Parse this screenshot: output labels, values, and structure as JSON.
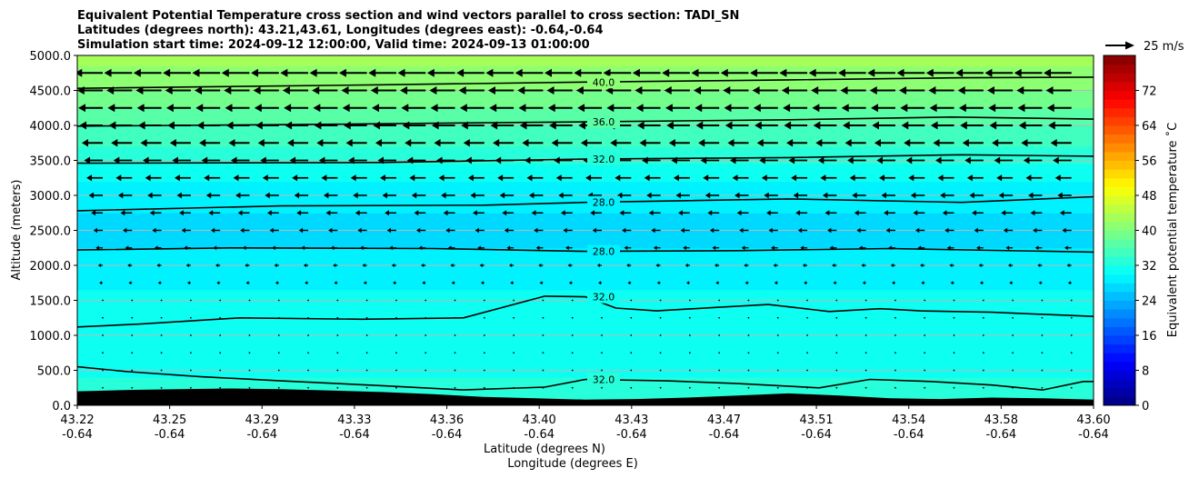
{
  "chart_data": {
    "type": "heatmap",
    "title_lines": [
      "Equivalent Potential Temperature cross section and wind vectors parallel to cross section: TADI_SN",
      "Latitudes (degrees north): 43.21,43.61, Longitudes (degrees east): -0.64,-0.64",
      "Simulation start time: 2024-09-12 12:00:00, Valid time: 2024-09-13 01:00:00"
    ],
    "xlabel": "Latitude (degrees N)",
    "xlabel2": "Longitude (degrees E)",
    "ylabel": "Altitude (meters)",
    "ylim": [
      0,
      5000
    ],
    "x_tick_lat": [
      "43.22",
      "43.25",
      "43.29",
      "43.33",
      "43.36",
      "43.40",
      "43.43",
      "43.47",
      "43.51",
      "43.54",
      "43.58",
      "43.60"
    ],
    "x_tick_lon": [
      "-0.64",
      "-0.64",
      "-0.64",
      "-0.64",
      "-0.64",
      "-0.64",
      "-0.64",
      "-0.64",
      "-0.64",
      "-0.64",
      "-0.64",
      "-0.64"
    ],
    "y_ticks": [
      0,
      500,
      1000,
      1500,
      2000,
      2500,
      3000,
      3500,
      4000,
      4500,
      5000
    ],
    "y_tick_labels": [
      "0.0",
      "500.0",
      "1000.0",
      "1500.0",
      "2000.0",
      "2500.0",
      "3000.0",
      "3500.0",
      "4000.0",
      "4500.0",
      "5000.0"
    ],
    "grid": true,
    "colorbar": {
      "label": "Equivalent potential temperature ˚C",
      "vmin": 0,
      "vmax": 80,
      "step": 2,
      "tick_values": [
        0,
        8,
        16,
        24,
        32,
        40,
        48,
        56,
        64,
        72
      ],
      "tick_labels": [
        "0",
        "8",
        "16",
        "24",
        "32",
        "40",
        "48",
        "56",
        "64",
        "72"
      ],
      "colormap": "jet"
    },
    "field_profile": {
      "altitudes": [
        0,
        250,
        500,
        1000,
        1500,
        2000,
        2500,
        3000,
        3500,
        4000,
        4500,
        5000
      ],
      "theta_e": [
        33,
        32.5,
        31.5,
        31,
        30.5,
        28.5,
        27.5,
        28.5,
        32.5,
        36,
        40,
        43
      ]
    },
    "contours": [
      {
        "level": "40.0",
        "label": "40.0",
        "x": [
          0,
          0.3,
          0.5,
          0.7,
          0.87,
          1.0
        ],
        "y": [
          4530,
          4580,
          4620,
          4650,
          4680,
          4690
        ]
      },
      {
        "level": "36.0",
        "label": "36.0",
        "x": [
          0,
          0.2,
          0.5,
          0.7,
          0.86,
          1.0
        ],
        "y": [
          3990,
          4010,
          4050,
          4080,
          4120,
          4090
        ]
      },
      {
        "level": "32.0",
        "label": "32.0",
        "x": [
          0,
          0.3,
          0.5,
          0.7,
          0.87,
          1.0
        ],
        "y": [
          3460,
          3470,
          3520,
          3540,
          3580,
          3560
        ]
      },
      {
        "level": "28.0",
        "label": "28.0",
        "x": [
          0,
          0.2,
          0.4,
          0.5,
          0.7,
          0.87,
          1.0
        ],
        "y": [
          2780,
          2850,
          2860,
          2900,
          2950,
          2900,
          2980
        ]
      },
      {
        "level": "28.0",
        "label": "28.0",
        "x": [
          0,
          0.15,
          0.35,
          0.5,
          0.65,
          0.8,
          1.0
        ],
        "y": [
          2220,
          2250,
          2240,
          2200,
          2210,
          2240,
          2190
        ]
      },
      {
        "level": "32.0",
        "label": "32.0",
        "x": [
          0,
          0.06,
          0.16,
          0.28,
          0.38,
          0.46,
          0.5,
          0.53,
          0.57,
          0.63,
          0.68,
          0.74,
          0.79,
          0.83,
          0.9,
          1.0
        ],
        "y": [
          1120,
          1160,
          1250,
          1230,
          1250,
          1560,
          1550,
          1390,
          1350,
          1400,
          1440,
          1340,
          1380,
          1350,
          1330,
          1270
        ]
      },
      {
        "level": "32.0",
        "label": "32.0",
        "x": [
          0,
          0.05,
          0.12,
          0.2,
          0.3,
          0.38,
          0.46,
          0.5,
          0.58,
          0.65,
          0.73,
          0.78,
          0.84,
          0.9,
          0.95,
          0.99,
          1.0
        ],
        "y": [
          550,
          480,
          410,
          350,
          280,
          220,
          260,
          370,
          350,
          310,
          250,
          370,
          340,
          290,
          220,
          340,
          340
        ]
      }
    ],
    "terrain": {
      "x": [
        0,
        0.05,
        0.1,
        0.15,
        0.2,
        0.25,
        0.3,
        0.35,
        0.4,
        0.45,
        0.5,
        0.55,
        0.6,
        0.65,
        0.7,
        0.75,
        0.8,
        0.85,
        0.9,
        0.95,
        1.0
      ],
      "y": [
        200,
        220,
        230,
        240,
        230,
        210,
        190,
        160,
        120,
        100,
        80,
        90,
        110,
        140,
        170,
        140,
        100,
        90,
        110,
        100,
        80
      ]
    },
    "wind_levels": [
      0,
      250,
      500,
      750,
      1000,
      1250,
      1500,
      1750,
      2000,
      2250,
      2500,
      2750,
      3000,
      3250,
      3500,
      3750,
      4000,
      4250,
      4500,
      4750
    ],
    "wind_speed_ms": [
      1,
      1,
      1.5,
      1.5,
      1.5,
      2,
      2,
      3,
      4,
      6,
      8,
      10,
      12,
      14,
      16,
      18,
      20,
      21,
      22,
      24
    ],
    "wind_direction": "toward decreasing latitude",
    "quiver_key": {
      "label": "25 m/s",
      "speed_ms": 25
    }
  }
}
